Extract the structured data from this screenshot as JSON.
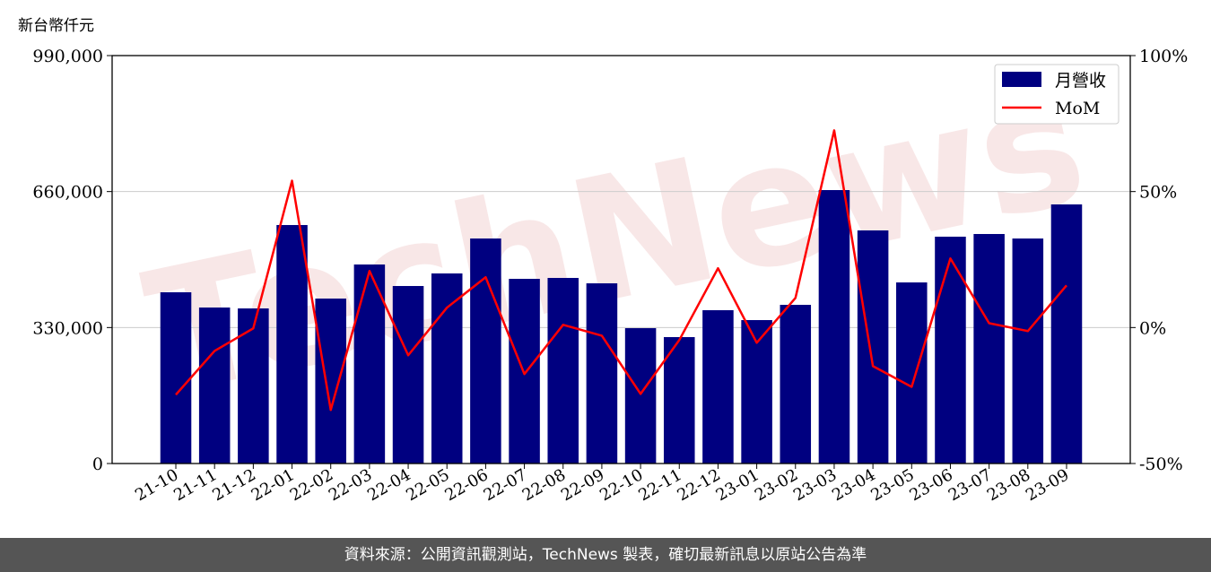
{
  "chart_data": {
    "type": "bar+line",
    "ylabel_left": "新台幣仟元",
    "categories": [
      "21-10",
      "21-11",
      "21-12",
      "22-01",
      "22-02",
      "22-03",
      "22-04",
      "22-05",
      "22-06",
      "22-07",
      "22-08",
      "22-09",
      "22-10",
      "22-11",
      "22-12",
      "23-01",
      "23-02",
      "23-03",
      "23-04",
      "23-05",
      "23-06",
      "23-07",
      "23-08",
      "23-09"
    ],
    "series": [
      {
        "name": "月營收",
        "type": "bar",
        "axis": "left",
        "color": "#000080",
        "values": [
          415600,
          378600,
          376400,
          578800,
          400300,
          483000,
          430800,
          461300,
          546100,
          448200,
          450400,
          437300,
          328500,
          306800,
          372100,
          348100,
          385100,
          663600,
          565700,
          439500,
          550500,
          557000,
          546100,
          628800
        ]
      },
      {
        "name": "MoM",
        "type": "line",
        "axis": "right",
        "color": "#ff0000",
        "unit": "%",
        "values": [
          -24.7,
          -8.6,
          -0.3,
          54.0,
          -30.3,
          20.8,
          -10.2,
          7.3,
          18.5,
          -17.1,
          1.0,
          -3.0,
          -24.4,
          -4.6,
          21.8,
          -5.6,
          10.9,
          72.5,
          -14.2,
          -21.8,
          25.4,
          1.6,
          -1.3,
          15.5
        ]
      }
    ],
    "ylim_left": [
      0,
      990000
    ],
    "yticks_left": [
      "0",
      "330,000",
      "660,000",
      "990,000"
    ],
    "ylim_right": [
      -50,
      100
    ],
    "yticks_right": [
      "-50%",
      "0%",
      "50%",
      "100%"
    ],
    "grid": "horizontal",
    "legend": "top-right"
  },
  "watermark": "TechNews",
  "footer": "資料來源：公開資訊觀測站，TechNews 製表，確切最新訊息以原站公告為準"
}
